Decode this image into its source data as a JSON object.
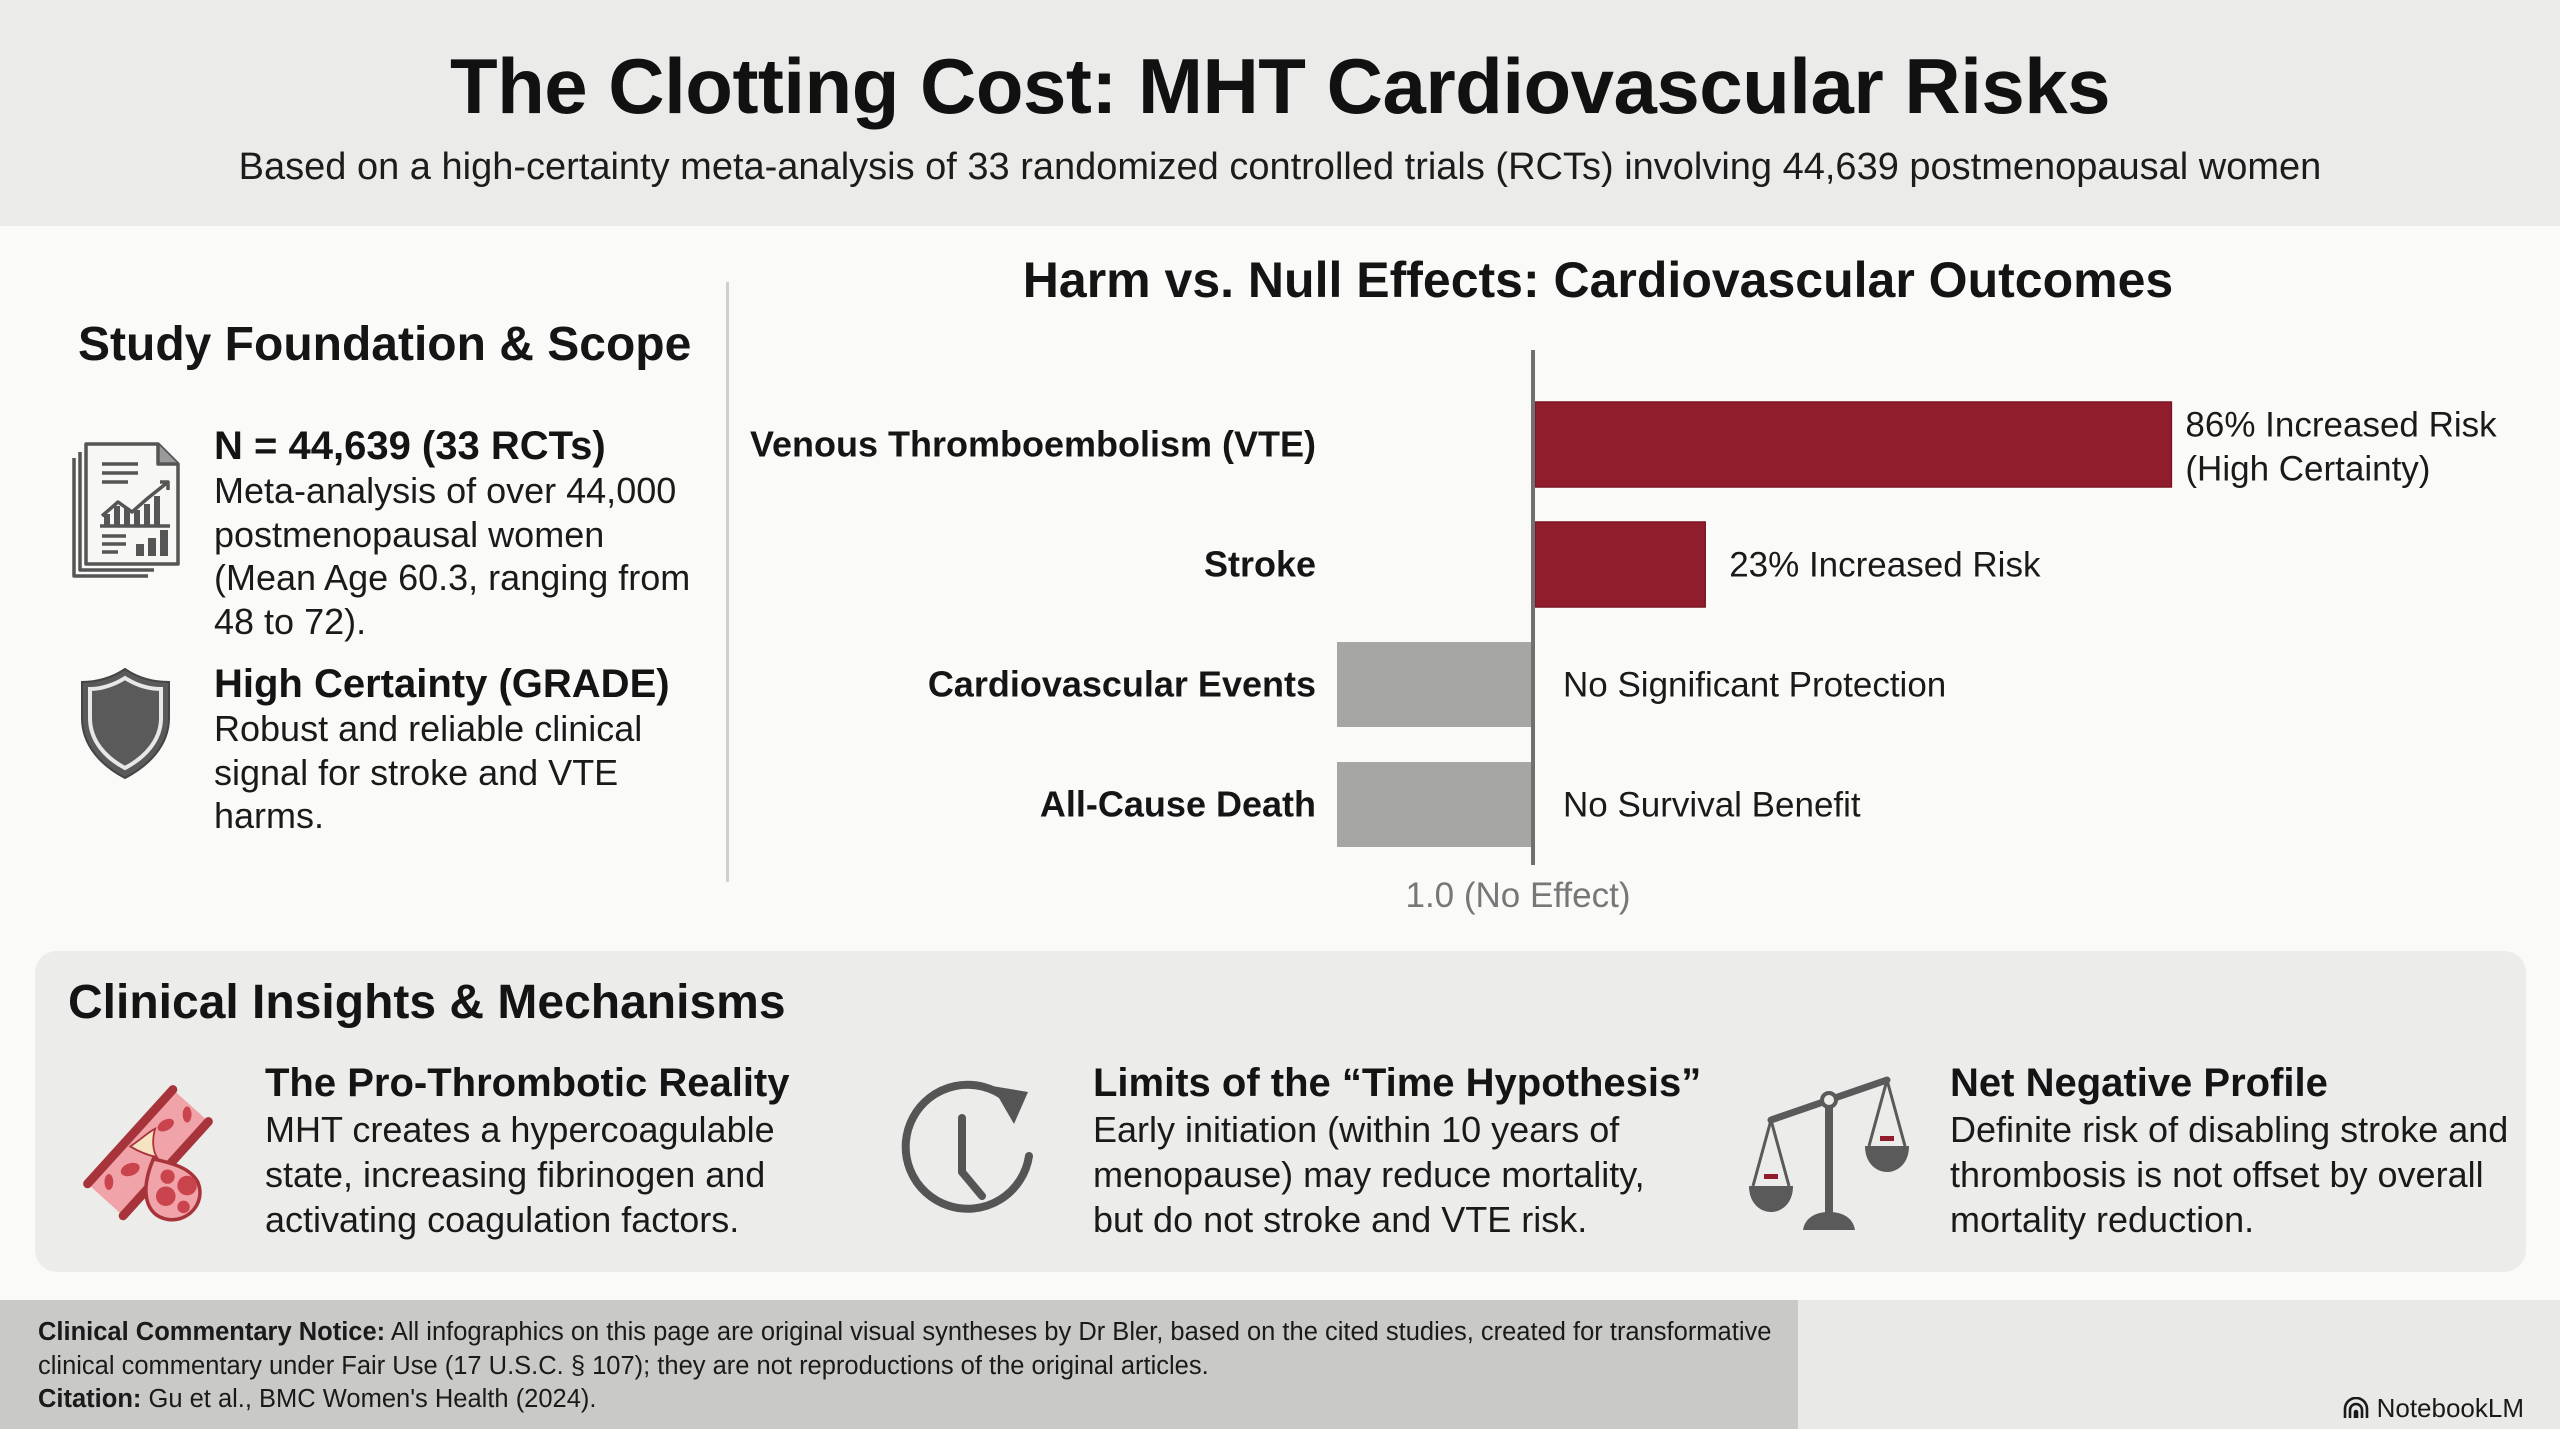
{
  "header": {
    "title": "The Clotting Cost: MHT Cardiovascular Risks",
    "subtitle": "Based on a high-certainty meta-analysis of 33 randomized controlled trials (RCTs) involving 44,639 postmenopausal women"
  },
  "scope": {
    "heading": "Study Foundation & Scope",
    "facts": [
      {
        "icon": "report-document-icon",
        "title": "N = 44,639 (33 RCTs)",
        "body": "Meta-analysis of over 44,000 postmenopausal women (Mean Age 60.3, ranging from 48 to 72)."
      },
      {
        "icon": "shield-icon",
        "title": "High Certainty (GRADE)",
        "body": "Robust and reliable clinical signal for stroke and VTE harms."
      }
    ]
  },
  "chart_data": {
    "type": "bar",
    "orientation": "horizontal",
    "title": "Harm vs. Null Effects: Cardiovascular Outcomes",
    "xlabel": "",
    "ylabel": "",
    "reference_line": {
      "value": 1.0,
      "label": "1.0 (No Effect)"
    },
    "categories": [
      "Venous Thromboembolism (VTE)",
      "Stroke",
      "Cardiovascular Events",
      "All-Cause Death"
    ],
    "values": [
      1.86,
      1.23,
      1.0,
      1.0
    ],
    "effect": [
      "harm",
      "harm",
      "null",
      "null"
    ],
    "data_labels": [
      "86% Increased Risk (High Certainty)",
      "23% Increased Risk",
      "No Significant Protection",
      "No Survival Benefit"
    ],
    "colors": {
      "harm": "#8f1d2c",
      "null": "#a6a6a4",
      "axis": "#707070"
    },
    "grid": false,
    "legend": "none"
  },
  "insights": {
    "heading": "Clinical Insights & Mechanisms",
    "items": [
      {
        "icon": "blood-vessel-clot-icon",
        "title": "The Pro-Thrombotic Reality",
        "body": "MHT creates a hypercoagulable state, increasing fibrinogen and activating coagulation factors."
      },
      {
        "icon": "clock-icon",
        "title": "Limits of the “Time Hypothesis”",
        "body": "Early initiation (within 10 years of menopause) may reduce mortality, but do not stroke and VTE risk."
      },
      {
        "icon": "balance-scale-icon",
        "title": "Net Negative Profile",
        "body": "Definite risk of disabling stroke and thrombosis is not offset by overall mortality reduction."
      }
    ]
  },
  "footer": {
    "notice_label": "Clinical Commentary Notice:",
    "notice_text": " All infographics on this page are original visual syntheses by Dr Bler, based on the cited studies, created for transformative clinical commentary under Fair Use (17 U.S.C. § 107); they are not reproductions of the original articles.",
    "citation_label": "Citation:",
    "citation_text": " Gu et al., BMC Women's Health (2024).",
    "brand": "NotebookLM"
  }
}
